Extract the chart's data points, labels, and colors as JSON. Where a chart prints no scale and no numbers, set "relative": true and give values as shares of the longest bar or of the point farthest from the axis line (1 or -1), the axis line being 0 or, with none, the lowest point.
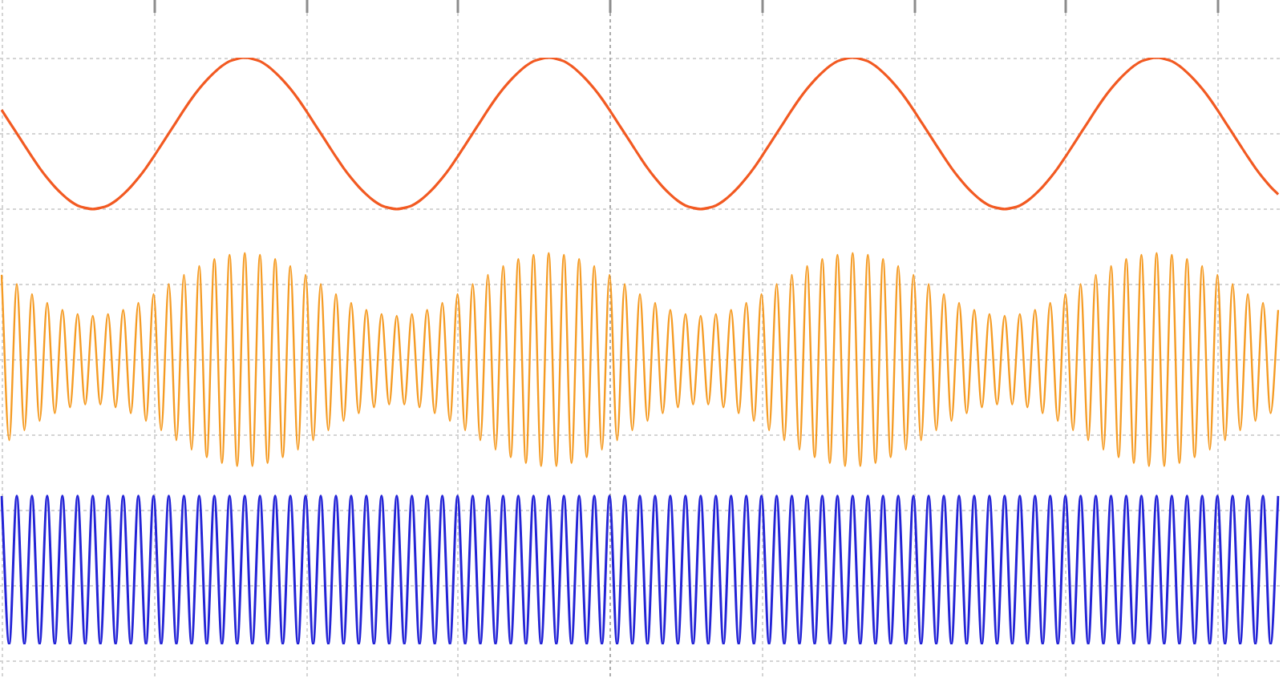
{
  "chart_data": {
    "type": "line",
    "relative": true,
    "grid": true,
    "categories": [
      null,
      null,
      null,
      null,
      null,
      null,
      null,
      null,
      null,
      null,
      null,
      null,
      null,
      null,
      null,
      null,
      null,
      null,
      null,
      null,
      null,
      null,
      null,
      null,
      null,
      null,
      null,
      null,
      null,
      null,
      null,
      null,
      null,
      null,
      null,
      null,
      null,
      null,
      null,
      null,
      null,
      null,
      null,
      null,
      null,
      null,
      null,
      null,
      null,
      null,
      null,
      null,
      null,
      null,
      null,
      null,
      null,
      null,
      null,
      null,
      null,
      null,
      null,
      null,
      null,
      null,
      null,
      null,
      null,
      null,
      null,
      null,
      null,
      null,
      null,
      null,
      null,
      null,
      null,
      null,
      null,
      null,
      null,
      null,
      null,
      null,
      null,
      null,
      null,
      null,
      null,
      null,
      null,
      null,
      null,
      null,
      null,
      null,
      null,
      null,
      null,
      null,
      null,
      null,
      null,
      null,
      null,
      null,
      null,
      null,
      null,
      null,
      null,
      null,
      null,
      null,
      null,
      null,
      null,
      null,
      null,
      null,
      null,
      null,
      null,
      null,
      null,
      null,
      null,
      null,
      null,
      null,
      null,
      null,
      null,
      null,
      null,
      null,
      null,
      null,
      null,
      null,
      null,
      null,
      null,
      null,
      null,
      null,
      null,
      null,
      null,
      null,
      null,
      null,
      null,
      null,
      null,
      null,
      null,
      null,
      null,
      null,
      null,
      null,
      null,
      null,
      null,
      null,
      null
    ],
    "series": [
      {
        "color": "#f25a22",
        "values": [
          0.911,
          0.891,
          0.871,
          0.851,
          0.831,
          0.812,
          0.795,
          0.78,
          0.767,
          0.756,
          0.748,
          0.744,
          0.742,
          0.744,
          0.748,
          0.756,
          0.767,
          0.78,
          0.795,
          0.812,
          0.831,
          0.851,
          0.871,
          0.891,
          0.911,
          0.93,
          0.947,
          0.962,
          0.975,
          0.986,
          0.994,
          0.998,
          1,
          0.998,
          0.994,
          0.986,
          0.975,
          0.962,
          0.947,
          0.93,
          0.911,
          0.891,
          0.871,
          0.851,
          0.831,
          0.812,
          0.795,
          0.78,
          0.767,
          0.756,
          0.748,
          0.744,
          0.742,
          0.744,
          0.748,
          0.756,
          0.767,
          0.78,
          0.795,
          0.812,
          0.831,
          0.851,
          0.871,
          0.891,
          0.911,
          0.93,
          0.947,
          0.962,
          0.975,
          0.986,
          0.994,
          0.998,
          1,
          0.998,
          0.994,
          0.986,
          0.975,
          0.962,
          0.947,
          0.93,
          0.911,
          0.891,
          0.871,
          0.851,
          0.831,
          0.812,
          0.795,
          0.78,
          0.767,
          0.756,
          0.748,
          0.744,
          0.742,
          0.744,
          0.748,
          0.756,
          0.767,
          0.78,
          0.795,
          0.812,
          0.831,
          0.851,
          0.871,
          0.891,
          0.911,
          0.93,
          0.947,
          0.962,
          0.975,
          0.986,
          0.994,
          0.998,
          1,
          0.998,
          0.994,
          0.986,
          0.975,
          0.962,
          0.947,
          0.93,
          0.911,
          0.891,
          0.871,
          0.851,
          0.831,
          0.812,
          0.795,
          0.78,
          0.767,
          0.756,
          0.748,
          0.744,
          0.742,
          0.744,
          0.748,
          0.756,
          0.767,
          0.78,
          0.795,
          0.812,
          0.831,
          0.851,
          0.871,
          0.891,
          0.911,
          0.93,
          0.947,
          0.962,
          0.975,
          0.986,
          0.994,
          0.998,
          1,
          0.998,
          0.994,
          0.986,
          0.975,
          0.962,
          0.947,
          0.93,
          0.911,
          0.891,
          0.871,
          0.851,
          0.831,
          0.812,
          0.795,
          0.78,
          0.767
        ]
      },
      {
        "color": "#f59b23",
        "values": [
          0.63,
          0.348,
          0.614,
          0.365,
          0.597,
          0.381,
          0.582,
          0.394,
          0.57,
          0.404,
          0.563,
          0.409,
          0.56,
          0.409,
          0.563,
          0.404,
          0.57,
          0.394,
          0.582,
          0.381,
          0.597,
          0.365,
          0.614,
          0.348,
          0.63,
          0.332,
          0.645,
          0.319,
          0.657,
          0.309,
          0.664,
          0.304,
          0.667,
          0.304,
          0.664,
          0.309,
          0.657,
          0.319,
          0.645,
          0.332,
          0.63,
          0.348,
          0.614,
          0.365,
          0.597,
          0.381,
          0.582,
          0.394,
          0.57,
          0.404,
          0.563,
          0.409,
          0.56,
          0.409,
          0.563,
          0.404,
          0.57,
          0.394,
          0.582,
          0.381,
          0.597,
          0.365,
          0.614,
          0.348,
          0.63,
          0.332,
          0.645,
          0.319,
          0.657,
          0.309,
          0.664,
          0.304,
          0.667,
          0.304,
          0.664,
          0.309,
          0.657,
          0.319,
          0.645,
          0.332,
          0.63,
          0.348,
          0.614,
          0.365,
          0.597,
          0.381,
          0.582,
          0.394,
          0.57,
          0.404,
          0.563,
          0.409,
          0.56,
          0.409,
          0.563,
          0.404,
          0.57,
          0.394,
          0.582,
          0.381,
          0.597,
          0.365,
          0.614,
          0.348,
          0.63,
          0.332,
          0.645,
          0.319,
          0.657,
          0.309,
          0.664,
          0.304,
          0.667,
          0.304,
          0.664,
          0.309,
          0.657,
          0.319,
          0.645,
          0.332,
          0.63,
          0.348,
          0.614,
          0.365,
          0.597,
          0.381,
          0.582,
          0.394,
          0.57,
          0.404,
          0.563,
          0.409,
          0.56,
          0.409,
          0.563,
          0.404,
          0.57,
          0.394,
          0.582,
          0.381,
          0.597,
          0.365,
          0.614,
          0.348,
          0.63,
          0.332,
          0.645,
          0.319,
          0.657,
          0.309,
          0.664,
          0.304,
          0.667,
          0.304,
          0.664,
          0.309,
          0.657,
          0.319,
          0.645,
          0.332,
          0.63,
          0.348,
          0.614,
          0.365,
          0.597,
          0.381,
          0.582,
          0.394,
          0.57
        ]
      },
      {
        "color": "#2323d6",
        "values": [
          0.253,
          0,
          0.253,
          0,
          0.253,
          0,
          0.253,
          0,
          0.253,
          0,
          0.253,
          0,
          0.253,
          0,
          0.253,
          0,
          0.253,
          0,
          0.253,
          0,
          0.253,
          0,
          0.253,
          0,
          0.253,
          0,
          0.253,
          0,
          0.253,
          0,
          0.253,
          0,
          0.253,
          0,
          0.253,
          0,
          0.253,
          0,
          0.253,
          0,
          0.253,
          0,
          0.253,
          0,
          0.253,
          0,
          0.253,
          0,
          0.253,
          0,
          0.253,
          0,
          0.253,
          0,
          0.253,
          0,
          0.253,
          0,
          0.253,
          0,
          0.253,
          0,
          0.253,
          0,
          0.253,
          0,
          0.253,
          0,
          0.253,
          0,
          0.253,
          0,
          0.253,
          0,
          0.253,
          0,
          0.253,
          0,
          0.253,
          0,
          0.253,
          0,
          0.253,
          0,
          0.253,
          0,
          0.253,
          0,
          0.253,
          0,
          0.253,
          0,
          0.253,
          0,
          0.253,
          0,
          0.253,
          0,
          0.253,
          0,
          0.253,
          0,
          0.253,
          0,
          0.253,
          0,
          0.253,
          0,
          0.253,
          0,
          0.253,
          0,
          0.253,
          0,
          0.253,
          0,
          0.253,
          0,
          0.253,
          0,
          0.253,
          0,
          0.253,
          0,
          0.253,
          0,
          0.253,
          0,
          0.253,
          0,
          0.253,
          0,
          0.253,
          0,
          0.253,
          0,
          0.253,
          0,
          0.253,
          0,
          0.253,
          0,
          0.253,
          0,
          0.253,
          0,
          0.253,
          0,
          0.253,
          0,
          0.253,
          0,
          0.253,
          0,
          0.253,
          0,
          0.253,
          0,
          0.253,
          0,
          0.253,
          0,
          0.253,
          0,
          0.253,
          0,
          0.253,
          0,
          0.253
        ]
      }
    ]
  }
}
